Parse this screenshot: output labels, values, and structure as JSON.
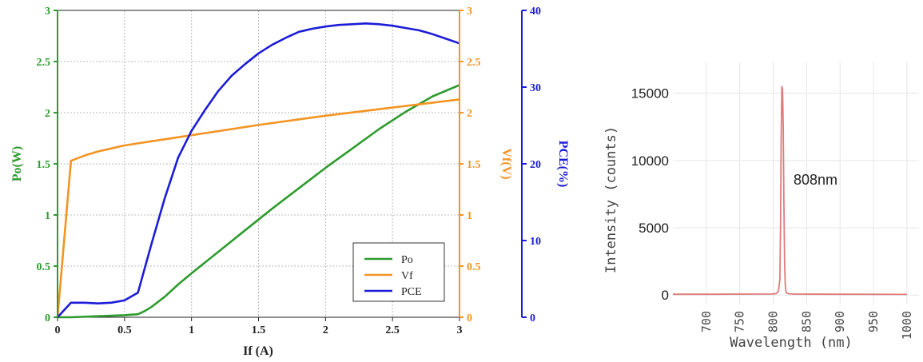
{
  "chart_data": [
    {
      "type": "line",
      "xlabel": "If (A)",
      "x_ticks": [
        0,
        0.5,
        1,
        1.5,
        2,
        2.5,
        3
      ],
      "xlim": [
        0,
        3
      ],
      "axes": {
        "left": {
          "label": "Po(W)",
          "ylim": [
            0,
            3
          ],
          "ticks": [
            0,
            0.5,
            1,
            1.5,
            2,
            2.5,
            3
          ],
          "color": "#2e9b2e"
        },
        "right1": {
          "label": "Vf(V)",
          "ylim": [
            0,
            3
          ],
          "ticks": [
            0,
            0.5,
            1,
            1.5,
            2,
            2.5,
            3
          ],
          "color": "#f39423"
        },
        "right2": {
          "label": "PCE(%)",
          "ylim": [
            0,
            40
          ],
          "ticks": [
            0,
            10,
            20,
            30,
            40
          ],
          "color": "#1c1cd8"
        }
      },
      "grid": true,
      "legend_position": "bottom-right",
      "series": [
        {
          "name": "Po",
          "axis": "left",
          "color": "#2e9b2e",
          "x": [
            0,
            0.1,
            0.3,
            0.5,
            0.6,
            0.65,
            0.7,
            0.8,
            0.9,
            1.0,
            1.2,
            1.4,
            1.6,
            1.8,
            2.0,
            2.2,
            2.4,
            2.6,
            2.8,
            3.0
          ],
          "y": [
            0,
            0,
            0.01,
            0.02,
            0.03,
            0.06,
            0.1,
            0.2,
            0.32,
            0.43,
            0.64,
            0.85,
            1.06,
            1.26,
            1.46,
            1.65,
            1.84,
            2.01,
            2.16,
            2.27
          ]
        },
        {
          "name": "Vf",
          "axis": "right1",
          "color": "#f39423",
          "x": [
            0,
            0.1,
            0.2,
            0.3,
            0.4,
            0.5,
            0.6,
            0.7,
            0.8,
            1.0,
            1.5,
            2.0,
            2.5,
            3.0
          ],
          "y": [
            0,
            1.53,
            1.58,
            1.62,
            1.65,
            1.68,
            1.7,
            1.72,
            1.74,
            1.78,
            1.88,
            1.97,
            2.05,
            2.13
          ]
        },
        {
          "name": "PCE",
          "axis": "right2",
          "color": "#1c1cd8",
          "x": [
            0,
            0.1,
            0.2,
            0.3,
            0.4,
            0.5,
            0.6,
            0.7,
            0.8,
            0.9,
            1.0,
            1.1,
            1.2,
            1.3,
            1.4,
            1.5,
            1.6,
            1.7,
            1.8,
            1.9,
            2.0,
            2.1,
            2.2,
            2.3,
            2.4,
            2.5,
            2.6,
            2.7,
            2.8,
            2.9,
            3.0
          ],
          "y": [
            0,
            1.9,
            1.9,
            1.8,
            1.9,
            2.2,
            3.2,
            9.5,
            15.5,
            20.8,
            24.3,
            27.0,
            29.5,
            31.5,
            33.0,
            34.4,
            35.5,
            36.4,
            37.2,
            37.6,
            37.9,
            38.1,
            38.2,
            38.3,
            38.2,
            38.0,
            37.7,
            37.4,
            36.9,
            36.3,
            35.7
          ]
        }
      ]
    },
    {
      "type": "line",
      "xlabel": "Wavelength (nm)",
      "ylabel": "Intensity (counts)",
      "x_ticks": [
        700,
        750,
        800,
        850,
        900,
        950,
        1000
      ],
      "y_ticks": [
        0,
        5000,
        10000,
        15000
      ],
      "xlim": [
        650,
        1030
      ],
      "ylim": [
        -700,
        17300
      ],
      "grid": true,
      "annotation": "808nm",
      "series": [
        {
          "color": "#e07b7b",
          "x": [
            650,
            700,
            800,
            805,
            808,
            810,
            811,
            812,
            813,
            814,
            815,
            816,
            817,
            818,
            819,
            820,
            823,
            830,
            900,
            1000
          ],
          "y": [
            60,
            60,
            80,
            120,
            300,
            1200,
            5000,
            12000,
            15500,
            15300,
            12500,
            7000,
            2500,
            800,
            300,
            150,
            100,
            70,
            60,
            50
          ]
        }
      ]
    }
  ]
}
